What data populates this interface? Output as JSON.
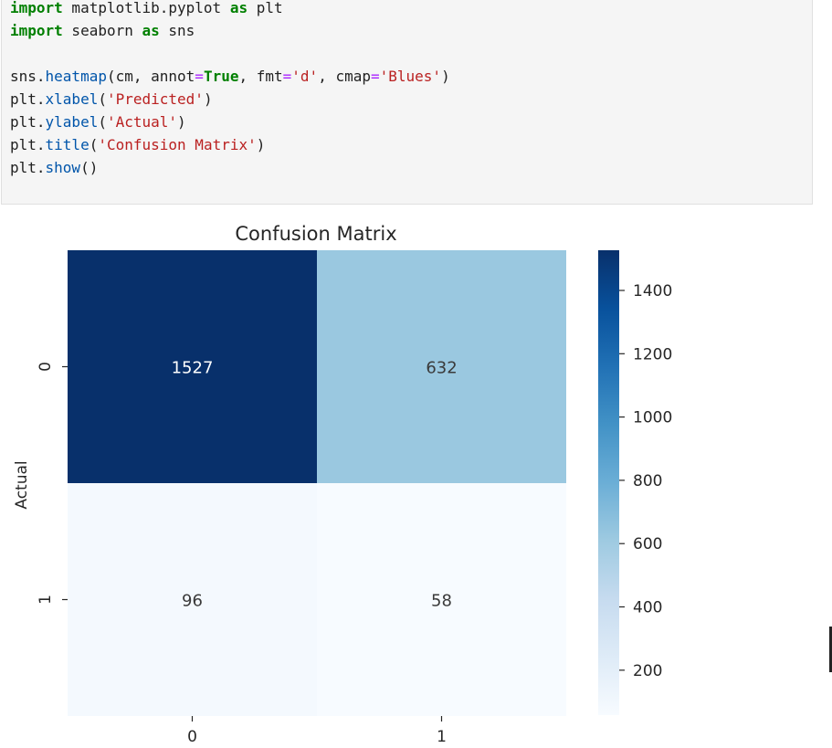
{
  "code": {
    "lines": [
      [
        {
          "t": "import",
          "c": "kw"
        },
        {
          "t": " matplotlib.pyplot ",
          "c": ""
        },
        {
          "t": "as",
          "c": "kw"
        },
        {
          "t": " plt",
          "c": ""
        }
      ],
      [
        {
          "t": "import",
          "c": "kw"
        },
        {
          "t": " seaborn ",
          "c": ""
        },
        {
          "t": "as",
          "c": "kw"
        },
        {
          "t": " sns",
          "c": ""
        }
      ],
      [],
      [
        {
          "t": "sns.",
          "c": ""
        },
        {
          "t": "heatmap",
          "c": "fn"
        },
        {
          "t": "(cm, annot",
          "c": ""
        },
        {
          "t": "=",
          "c": "op"
        },
        {
          "t": "True",
          "c": "kw"
        },
        {
          "t": ", fmt",
          "c": ""
        },
        {
          "t": "=",
          "c": "op"
        },
        {
          "t": "'d'",
          "c": "st"
        },
        {
          "t": ", cmap",
          "c": ""
        },
        {
          "t": "=",
          "c": "op"
        },
        {
          "t": "'Blues'",
          "c": "st"
        },
        {
          "t": ")",
          "c": ""
        }
      ],
      [
        {
          "t": "plt.",
          "c": ""
        },
        {
          "t": "xlabel",
          "c": "fn"
        },
        {
          "t": "(",
          "c": ""
        },
        {
          "t": "'Predicted'",
          "c": "st"
        },
        {
          "t": ")",
          "c": ""
        }
      ],
      [
        {
          "t": "plt.",
          "c": ""
        },
        {
          "t": "ylabel",
          "c": "fn"
        },
        {
          "t": "(",
          "c": ""
        },
        {
          "t": "'Actual'",
          "c": "st"
        },
        {
          "t": ")",
          "c": ""
        }
      ],
      [
        {
          "t": "plt.",
          "c": ""
        },
        {
          "t": "title",
          "c": "fn"
        },
        {
          "t": "(",
          "c": ""
        },
        {
          "t": "'Confusion Matrix'",
          "c": "st"
        },
        {
          "t": ")",
          "c": ""
        }
      ],
      [
        {
          "t": "plt.",
          "c": ""
        },
        {
          "t": "show",
          "c": "fn"
        },
        {
          "t": "()",
          "c": ""
        }
      ]
    ]
  },
  "chart_data": {
    "type": "heatmap",
    "title": "Confusion Matrix",
    "xlabel": "",
    "ylabel": "Actual",
    "x_categories": [
      "0",
      "1"
    ],
    "y_categories": [
      "0",
      "1"
    ],
    "values": [
      [
        1527,
        632
      ],
      [
        96,
        58
      ]
    ],
    "colormap": "Blues",
    "colorbar_ticks": [
      "1400",
      "1200",
      "1000",
      "800",
      "600",
      "400",
      "200"
    ],
    "colorbar_tick_values": [
      1400,
      1200,
      1000,
      800,
      600,
      400,
      200
    ],
    "vmin": 58,
    "vmax": 1527,
    "colors": {
      "cell_0_0": "#08306b",
      "cell_0_1": "#9ac8e0",
      "cell_1_0": "#f4f9fe",
      "cell_1_1": "#f7fbff"
    }
  }
}
